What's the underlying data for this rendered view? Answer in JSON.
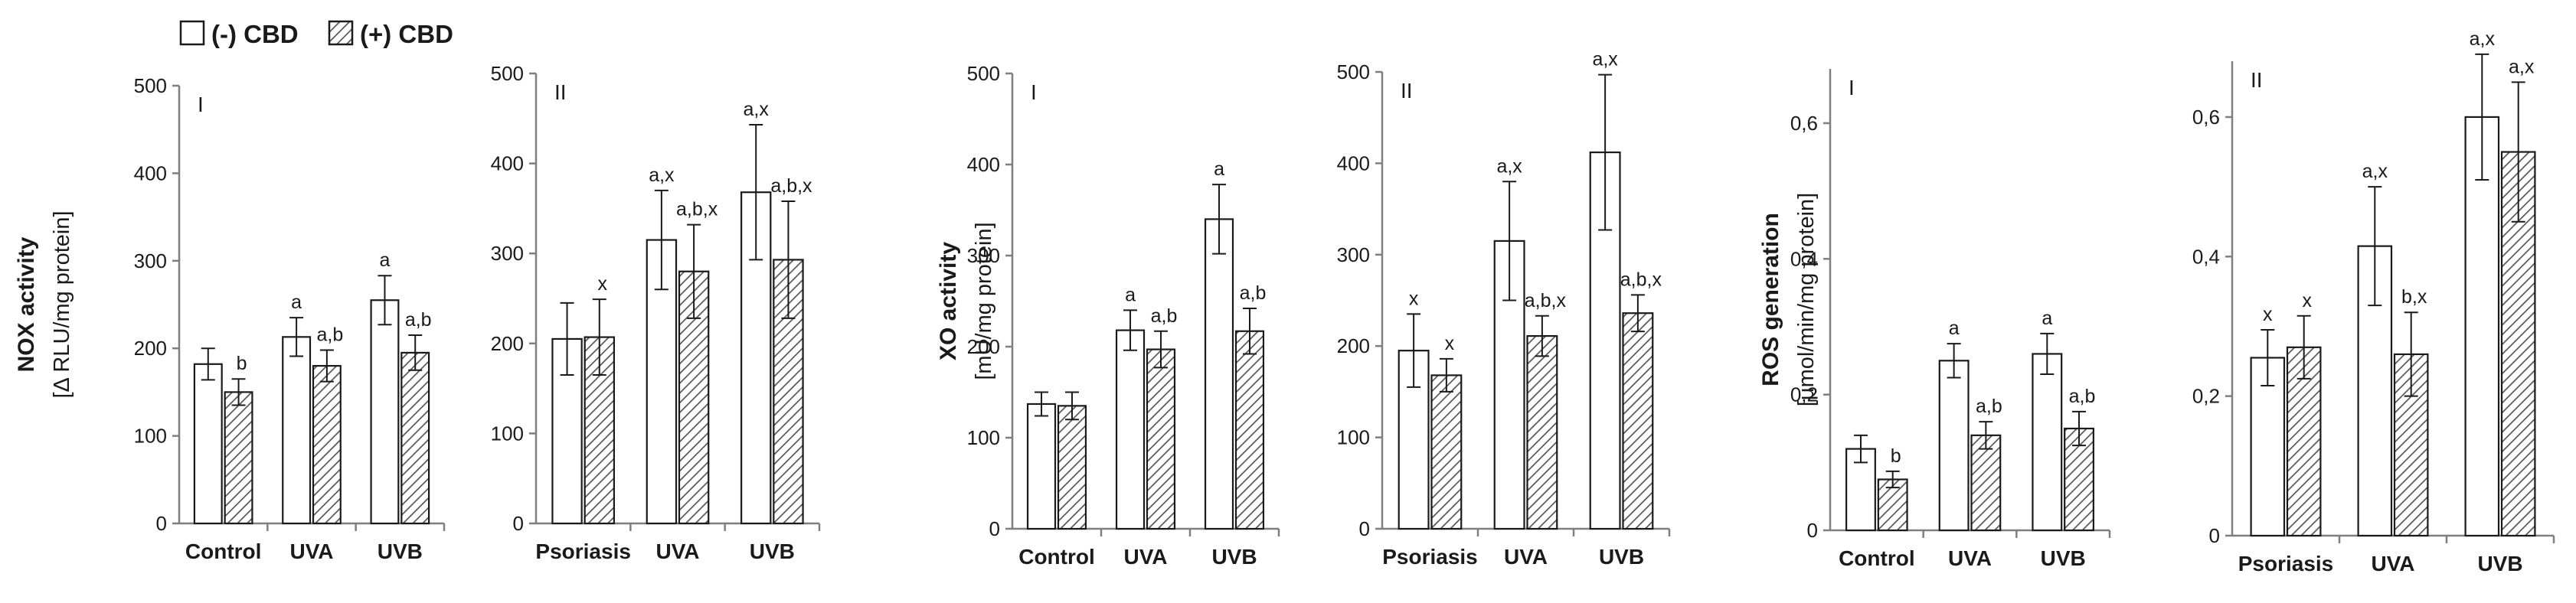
{
  "legend": {
    "minus_label": "(-) CBD",
    "plus_label": "(+) CBD"
  },
  "colors": {
    "axis": "#7f7f7f",
    "bar_edge": "#1a1a1a",
    "hatch": "#555555",
    "text": "#1a1a1a"
  },
  "chart_data": [
    {
      "id": "nox-I",
      "type": "bar",
      "panel_label": "I",
      "ylabel_main": "NOX activity",
      "ylabel_sub": "[Δ RLU/mg protein]",
      "ylim": [
        0,
        500
      ],
      "yticks": [
        "0",
        "100",
        "200",
        "300",
        "400",
        "500"
      ],
      "categories": [
        "Control",
        "UVA",
        "UVB"
      ],
      "series": [
        {
          "name": "(-) CBD",
          "values": [
            182,
            213,
            255
          ],
          "errors": [
            18,
            22,
            28
          ],
          "annotations": [
            "",
            "a",
            "a"
          ]
        },
        {
          "name": "(+) CBD",
          "values": [
            150,
            180,
            195
          ],
          "errors": [
            15,
            18,
            20
          ],
          "annotations": [
            "b",
            "a,b",
            "a,b"
          ]
        }
      ]
    },
    {
      "id": "nox-II",
      "type": "bar",
      "panel_label": "II",
      "ylim": [
        0,
        500
      ],
      "yticks": [
        "0",
        "100",
        "200",
        "300",
        "400",
        "500"
      ],
      "categories": [
        "Psoriasis",
        "UVA",
        "UVB"
      ],
      "series": [
        {
          "name": "(-) CBD",
          "values": [
            205,
            315,
            368
          ],
          "errors": [
            40,
            55,
            75
          ],
          "annotations": [
            "",
            "a,x",
            "a,x"
          ]
        },
        {
          "name": "(+) CBD",
          "values": [
            207,
            280,
            293
          ],
          "errors": [
            42,
            52,
            65
          ],
          "annotations": [
            "x",
            "a,b,x",
            "a,b,x"
          ]
        }
      ]
    },
    {
      "id": "xo-I",
      "type": "bar",
      "panel_label": "I",
      "ylabel_main": "XO activity",
      "ylabel_sub": "[mU/mg protein]",
      "ylim": [
        0,
        500
      ],
      "yticks": [
        "0",
        "100",
        "200",
        "300",
        "400",
        "500"
      ],
      "categories": [
        "Control",
        "UVA",
        "UVB"
      ],
      "series": [
        {
          "name": "(-) CBD",
          "values": [
            137,
            218,
            340
          ],
          "errors": [
            13,
            22,
            38
          ],
          "annotations": [
            "",
            "a",
            "a"
          ]
        },
        {
          "name": "(+) CBD",
          "values": [
            135,
            197,
            217
          ],
          "errors": [
            15,
            20,
            25
          ],
          "annotations": [
            "",
            "a,b",
            "a,b"
          ]
        }
      ]
    },
    {
      "id": "xo-II",
      "type": "bar",
      "panel_label": "II",
      "ylim": [
        0,
        500
      ],
      "yticks": [
        "0",
        "100",
        "200",
        "300",
        "400",
        "500"
      ],
      "categories": [
        "Psoriasis",
        "UVA",
        "UVB"
      ],
      "series": [
        {
          "name": "(-) CBD",
          "values": [
            195,
            315,
            412
          ],
          "errors": [
            40,
            65,
            85
          ],
          "annotations": [
            "x",
            "a,x",
            "a,x"
          ]
        },
        {
          "name": "(+) CBD",
          "values": [
            168,
            211,
            236
          ],
          "errors": [
            18,
            22,
            20
          ],
          "annotations": [
            "x",
            "a,b,x",
            "a,b,x"
          ]
        }
      ]
    },
    {
      "id": "ros-I",
      "type": "bar",
      "panel_label": "I",
      "ylabel_main": "ROS generation",
      "ylabel_sub": "[μmol/min/mg protein]",
      "ylim": [
        0,
        0.68
      ],
      "yticks": [
        "0",
        "0,2",
        "0,4",
        "0,6"
      ],
      "ytick_values": [
        0,
        0.2,
        0.4,
        0.6
      ],
      "categories": [
        "Control",
        "UVA",
        "UVB"
      ],
      "series": [
        {
          "name": "(-) CBD",
          "values": [
            0.12,
            0.25,
            0.26
          ],
          "errors": [
            0.02,
            0.025,
            0.03
          ],
          "annotations": [
            "",
            "a",
            "a"
          ]
        },
        {
          "name": "(+) CBD",
          "values": [
            0.075,
            0.14,
            0.15
          ],
          "errors": [
            0.012,
            0.02,
            0.025
          ],
          "annotations": [
            "b",
            "a,b",
            "a,b"
          ]
        }
      ]
    },
    {
      "id": "ros-II",
      "type": "bar",
      "panel_label": "II",
      "ylim": [
        0,
        0.68
      ],
      "yticks": [
        "0",
        "0,2",
        "0,4",
        "0,6"
      ],
      "ytick_values": [
        0,
        0.2,
        0.4,
        0.6
      ],
      "categories": [
        "Psoriasis",
        "UVA",
        "UVB"
      ],
      "series": [
        {
          "name": "(-) CBD",
          "values": [
            0.255,
            0.415,
            0.6
          ],
          "errors": [
            0.04,
            0.085,
            0.09
          ],
          "annotations": [
            "x",
            "a,x",
            "a,x"
          ]
        },
        {
          "name": "(+) CBD",
          "values": [
            0.27,
            0.26,
            0.55
          ],
          "errors": [
            0.045,
            0.06,
            0.1
          ],
          "annotations": [
            "x",
            "b,x",
            "a,x"
          ]
        }
      ]
    }
  ]
}
